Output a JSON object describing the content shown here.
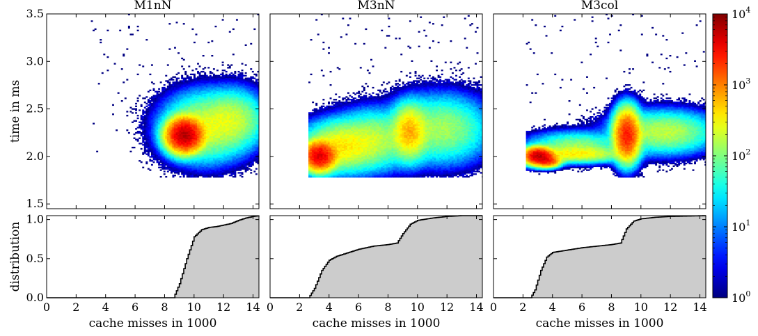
{
  "chart_data": {
    "type": "heatmap",
    "colorbar": {
      "ticks": [
        {
          "base": "10",
          "exp": "0",
          "value": 1
        },
        {
          "base": "10",
          "exp": "1",
          "value": 10
        },
        {
          "base": "10",
          "exp": "2",
          "value": 100
        },
        {
          "base": "10",
          "exp": "3",
          "value": 1000
        },
        {
          "base": "10",
          "exp": "4",
          "value": 10000
        }
      ],
      "scale": "log",
      "range": [
        1,
        10000
      ],
      "colormap": "jet"
    },
    "heatmap_axes": {
      "ylabel": "time in ms",
      "ylim": [
        1.45,
        3.5
      ],
      "yticks": [
        "1.5",
        "2.0",
        "2.5",
        "3.0",
        "3.5"
      ],
      "xlim": [
        0,
        14.4
      ]
    },
    "distribution_axes": {
      "ylabel": "distribution",
      "ylim": [
        0,
        1.05
      ],
      "yticks": [
        "0.0",
        "0.5",
        "1.0"
      ],
      "xlabel": "cache misses in 1000",
      "xlim": [
        0,
        14.4
      ],
      "xticks": [
        "0",
        "2",
        "4",
        "6",
        "8",
        "10",
        "12",
        "14"
      ],
      "fill_color": "#cccccc"
    },
    "panels": [
      {
        "title": "M1nN",
        "clusters": [
          {
            "x": 9.3,
            "y": 2.22,
            "sx": 0.55,
            "sy": 0.08,
            "peak": 6000
          },
          {
            "x": 10.7,
            "y": 2.3,
            "sx": 1.3,
            "sy": 0.16,
            "peak": 220
          },
          {
            "x": 12.6,
            "y": 2.38,
            "sx": 1.0,
            "sy": 0.14,
            "peak": 170
          }
        ],
        "scatter": {
          "xmin": 3.0,
          "xmax": 14.4,
          "ymin": 1.9,
          "ymax": 3.5
        },
        "cdf": {
          "x": [
            0,
            8.6,
            9.0,
            9.5,
            10.0,
            10.5,
            11.0,
            11.5,
            12.0,
            12.5,
            13.0,
            13.5,
            14.0,
            14.4
          ],
          "y": [
            0,
            0,
            0.18,
            0.5,
            0.78,
            0.87,
            0.9,
            0.91,
            0.93,
            0.95,
            0.99,
            1.02,
            1.04,
            1.05
          ]
        }
      },
      {
        "title": "M3nN",
        "clusters": [
          {
            "x": 3.3,
            "y": 2.0,
            "sx": 0.5,
            "sy": 0.07,
            "peak": 4000
          },
          {
            "x": 4.8,
            "y": 2.1,
            "sx": 1.2,
            "sy": 0.12,
            "peak": 350
          },
          {
            "x": 7.0,
            "y": 2.17,
            "sx": 1.2,
            "sy": 0.14,
            "peak": 160
          },
          {
            "x": 9.4,
            "y": 2.25,
            "sx": 0.55,
            "sy": 0.13,
            "peak": 600
          },
          {
            "x": 11.5,
            "y": 2.28,
            "sx": 1.5,
            "sy": 0.16,
            "peak": 140
          }
        ],
        "scatter": {
          "xmin": 2.6,
          "xmax": 14.4,
          "ymin": 1.9,
          "ymax": 3.5
        },
        "cdf": {
          "x": [
            0,
            2.6,
            3.0,
            3.5,
            4.0,
            4.5,
            5.0,
            6.0,
            7.0,
            8.0,
            8.6,
            9.0,
            9.5,
            10.0,
            11.0,
            12.0,
            13.0,
            14.4
          ],
          "y": [
            0,
            0,
            0.12,
            0.35,
            0.48,
            0.53,
            0.56,
            0.62,
            0.66,
            0.68,
            0.7,
            0.82,
            0.94,
            0.99,
            1.02,
            1.04,
            1.05,
            1.05
          ]
        }
      },
      {
        "title": "M3col",
        "clusters": [
          {
            "x": 3.0,
            "y": 2.0,
            "sx": 0.45,
            "sy": 0.04,
            "peak": 5500
          },
          {
            "x": 3.6,
            "y": 1.95,
            "sx": 0.4,
            "sy": 0.03,
            "peak": 2200
          },
          {
            "x": 5.5,
            "y": 2.02,
            "sx": 1.6,
            "sy": 0.04,
            "peak": 300
          },
          {
            "x": 5.5,
            "y": 2.1,
            "sx": 1.5,
            "sy": 0.07,
            "peak": 120
          },
          {
            "x": 9.0,
            "y": 2.22,
            "sx": 0.4,
            "sy": 0.12,
            "peak": 2500
          },
          {
            "x": 11.5,
            "y": 2.25,
            "sx": 1.6,
            "sy": 0.1,
            "peak": 180
          }
        ],
        "scatter": {
          "xmin": 2.2,
          "xmax": 14.4,
          "ymin": 1.9,
          "ymax": 3.5
        },
        "cdf": {
          "x": [
            0,
            2.5,
            2.8,
            3.2,
            3.6,
            4.0,
            5.0,
            6.0,
            7.0,
            8.0,
            8.6,
            9.0,
            9.5,
            10.0,
            11.0,
            12.0,
            14.4
          ],
          "y": [
            0,
            0,
            0.1,
            0.35,
            0.52,
            0.58,
            0.61,
            0.64,
            0.66,
            0.68,
            0.7,
            0.88,
            0.98,
            1.01,
            1.03,
            1.04,
            1.05
          ]
        }
      }
    ]
  }
}
